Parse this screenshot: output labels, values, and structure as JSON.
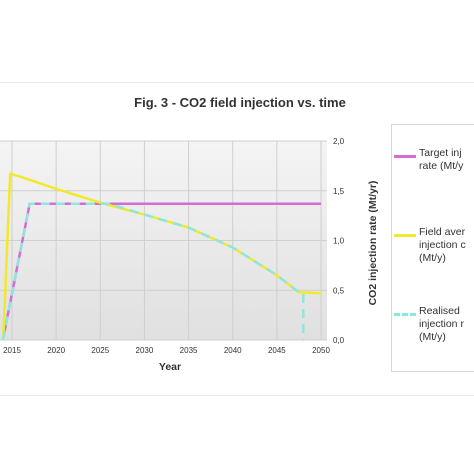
{
  "chart_data": {
    "type": "line",
    "title": "Fig. 3 - CO2 field injection vs. time",
    "xlabel": "Year",
    "ylabel": "CO2 injection rate (Mt/yr)",
    "xlim": [
      2014,
      2050
    ],
    "ylim": [
      0,
      2
    ],
    "xticks": [
      "2015",
      "2020",
      "2025",
      "2030",
      "2035",
      "2040",
      "2045",
      "2050"
    ],
    "xtick_values": [
      2015,
      2020,
      2025,
      2030,
      2035,
      2040,
      2045,
      2050
    ],
    "yticks": [
      "0,0",
      "0,5",
      "1,0",
      "1,5",
      "2,0"
    ],
    "ytick_values": [
      0,
      0.5,
      1,
      1.5,
      2
    ],
    "y_axis_side": "right",
    "grid": true,
    "legend_position": "right",
    "series": [
      {
        "name": "Target injection rate (Mt/y)",
        "legend_lines": [
          "Target inj",
          "rate (Mt/y"
        ],
        "color": "#d86ad8",
        "style": "solid",
        "points": [
          [
            2014,
            0
          ],
          [
            2014,
            0.02
          ],
          [
            2017,
            1.37
          ],
          [
            2050,
            1.37
          ]
        ]
      },
      {
        "name": "Field average injection capacity (Mt/y)",
        "legend_lines": [
          "Field aver",
          "injection c",
          "(Mt/y)"
        ],
        "color": "#f2e92a",
        "style": "solid",
        "points": [
          [
            2014,
            0
          ],
          [
            2014.8,
            1.67
          ],
          [
            2016,
            1.64
          ],
          [
            2020,
            1.52
          ],
          [
            2025,
            1.38
          ],
          [
            2030,
            1.26
          ],
          [
            2035,
            1.13
          ],
          [
            2040,
            0.93
          ],
          [
            2045,
            0.65
          ],
          [
            2047.5,
            0.48
          ],
          [
            2050,
            0.47
          ]
        ]
      },
      {
        "name": "Realised injection rate (Mt/y)",
        "legend_lines": [
          "Realised",
          "injection r",
          "(Mt/y)"
        ],
        "color": "#8ee6dc",
        "style": "dashed",
        "points": [
          [
            2014,
            0
          ],
          [
            2014,
            0.02
          ],
          [
            2017,
            1.37
          ],
          [
            2026,
            1.37
          ],
          [
            2030,
            1.26
          ],
          [
            2035,
            1.13
          ],
          [
            2040,
            0.93
          ],
          [
            2045,
            0.65
          ],
          [
            2047.5,
            0.48
          ],
          [
            2048,
            0.47
          ],
          [
            2048,
            0
          ]
        ]
      }
    ]
  }
}
